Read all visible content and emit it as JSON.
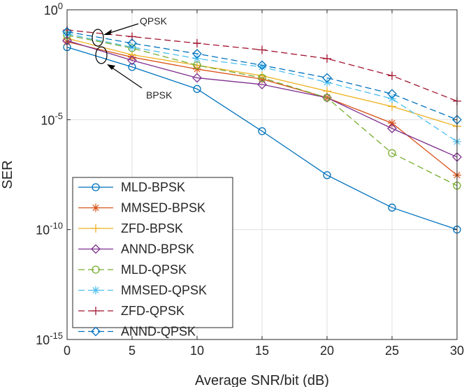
{
  "chart_data": {
    "type": "line",
    "title": "",
    "xlabel": "Average SNR/bit (dB)",
    "ylabel": "SER",
    "y_scale": "log",
    "xlim": [
      0,
      30
    ],
    "ylim": [
      1e-15,
      1
    ],
    "grid": true,
    "legend_position": "bottom-left",
    "x": [
      0,
      5,
      10,
      15,
      20,
      25,
      30
    ],
    "x_tick_labels": [
      "0",
      "5",
      "10",
      "15",
      "20",
      "25",
      "30"
    ],
    "y_ticks": [
      {
        "value": 1,
        "base": "10",
        "exp": "0"
      },
      {
        "value": 1e-05,
        "base": "10",
        "exp": "-5"
      },
      {
        "value": 1e-10,
        "base": "10",
        "exp": "-10"
      },
      {
        "value": 1e-15,
        "base": "10",
        "exp": "-15"
      }
    ],
    "series": [
      {
        "name": "MLD-BPSK",
        "color": "#0072BD",
        "dash": "solid",
        "marker": "circle",
        "values": [
          0.02,
          0.0025,
          0.00025,
          3e-06,
          3e-08,
          1e-09,
          1e-10
        ]
      },
      {
        "name": "MMSED-BPSK",
        "color": "#D95319",
        "dash": "solid",
        "marker": "asterisk",
        "values": [
          0.035,
          0.007,
          0.002,
          0.0007,
          0.0001,
          7e-06,
          3e-08
        ]
      },
      {
        "name": "ZFD-BPSK",
        "color": "#EDB120",
        "dash": "solid",
        "marker": "plus",
        "values": [
          0.05,
          0.009,
          0.003,
          0.001,
          0.0002,
          4e-05,
          5e-06
        ]
      },
      {
        "name": "ANND-BPSK",
        "color": "#7E2F8E",
        "dash": "solid",
        "marker": "diamond",
        "values": [
          0.04,
          0.005,
          0.0008,
          0.0004,
          0.0001,
          4e-06,
          2e-07
        ]
      },
      {
        "name": "MLD-QPSK",
        "color": "#77AC30",
        "dash": "dashed",
        "marker": "circle",
        "values": [
          0.07,
          0.018,
          0.003,
          0.0008,
          0.0001,
          3e-07,
          1e-08
        ]
      },
      {
        "name": "MMSED-QPSK",
        "color": "#4DBEEE",
        "dash": "dashed",
        "marker": "asterisk",
        "values": [
          0.08,
          0.02,
          0.006,
          0.0025,
          0.0005,
          9e-05,
          1e-06
        ]
      },
      {
        "name": "ZFD-QPSK",
        "color": "#A2142F",
        "dash": "dashed",
        "marker": "plus",
        "values": [
          0.12,
          0.06,
          0.03,
          0.015,
          0.006,
          0.001,
          7e-05
        ]
      },
      {
        "name": "ANND-QPSK",
        "color": "#0072BD",
        "dash": "dashed",
        "marker": "diamond",
        "values": [
          0.1,
          0.03,
          0.01,
          0.003,
          0.0008,
          0.00015,
          1e-05
        ]
      }
    ],
    "annotations": [
      {
        "text": "QPSK",
        "target": "QPSK curves at 2 dB"
      },
      {
        "text": "BPSK",
        "target": "BPSK curves at 2 dB"
      }
    ]
  }
}
